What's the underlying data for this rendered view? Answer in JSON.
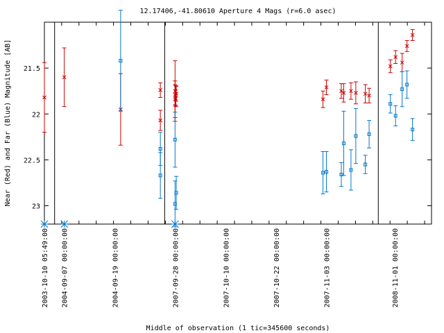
{
  "chart_data": {
    "type": "scatter",
    "title": "12.17406,-41.80610   Aperture 4 Mags (r=6.0 asec)",
    "xlabel": "Middle of observation (1 tic=345600 seconds)",
    "ylabel": "Near (Red) and Far (Blue) Magnitude [AB]",
    "y_axis_inverted": true,
    "ylim": [
      23.2,
      21.0
    ],
    "y_ticks": [
      21.5,
      22,
      22.5,
      23
    ],
    "y_tick_labels": [
      "21.5",
      "22",
      "22.5",
      "23"
    ],
    "x_tick_labels": [
      "2003-10-10 05:49:00",
      "2004-09-07 00:00:00",
      "2004-09-19 00:00:00",
      "2007-09-28 00:00:00",
      "2007-10-10 00:00:00",
      "2007-10-22 00:00:00",
      "2007-11-03 00:00:00",
      "2008-11-01 00:00:00"
    ],
    "x_unit": "tic index (1 tic = 345600 s)",
    "x_range": [
      0,
      22.4
    ],
    "x_tick_positions": [
      0,
      1.15,
      4.07,
      7.56,
      10.49,
      13.4,
      16.32,
      20.27
    ],
    "segment_breaks": [
      0.59,
      6.96,
      19.32
    ],
    "grid": false,
    "series": [
      {
        "name": "Near (Red)",
        "color": "#cc0000",
        "marker": "x",
        "x": [
          0,
          1.15,
          4.41,
          6.71,
          6.71,
          7.56,
          7.56,
          7.6,
          7.6,
          7.63,
          7.56,
          16.12,
          16.32,
          17.18,
          17.32,
          17.74,
          18.02,
          18.57,
          18.79,
          20.02,
          20.32,
          20.7,
          20.98,
          21.3
        ],
        "y": [
          21.82,
          21.6,
          21.95,
          21.74,
          22.07,
          21.75,
          21.79,
          21.83,
          21.8,
          21.78,
          21.84,
          21.84,
          21.71,
          21.75,
          21.77,
          21.75,
          21.77,
          21.78,
          21.8,
          21.48,
          21.38,
          21.44,
          21.26,
          21.14
        ],
        "err": [
          0.38,
          0.32,
          0.39,
          0.08,
          0.11,
          0.33,
          0.11,
          0.09,
          0.11,
          0.08,
          0.2,
          0.09,
          0.08,
          0.08,
          0.1,
          0.09,
          0.12,
          0.1,
          0.08,
          0.07,
          0.07,
          0.1,
          0.06,
          0.06
        ]
      },
      {
        "name": "Far (Blue)",
        "color": "#0077cc",
        "marker": "square",
        "x": [
          4.41,
          6.71,
          6.71,
          7.56,
          7.56,
          7.63,
          16.12,
          16.32,
          17.18,
          17.32,
          17.74,
          18.02,
          18.57,
          18.79,
          20.02,
          20.32,
          20.7,
          20.98,
          21.3
        ],
        "y": [
          21.42,
          22.38,
          22.67,
          22.28,
          22.98,
          22.86,
          22.64,
          22.63,
          22.66,
          22.32,
          22.61,
          22.24,
          22.55,
          22.22,
          21.89,
          22.02,
          21.73,
          21.68,
          22.17
        ],
        "err": [
          0.55,
          0.18,
          0.25,
          0.3,
          0.25,
          0.18,
          0.23,
          0.22,
          0.13,
          0.35,
          0.22,
          0.3,
          0.1,
          0.15,
          0.1,
          0.11,
          0.19,
          0.15,
          0.12
        ]
      }
    ],
    "axis_markers": {
      "color": "#0077cc",
      "marker": "asterisk",
      "x": [
        0,
        1.15,
        7.56
      ]
    }
  }
}
